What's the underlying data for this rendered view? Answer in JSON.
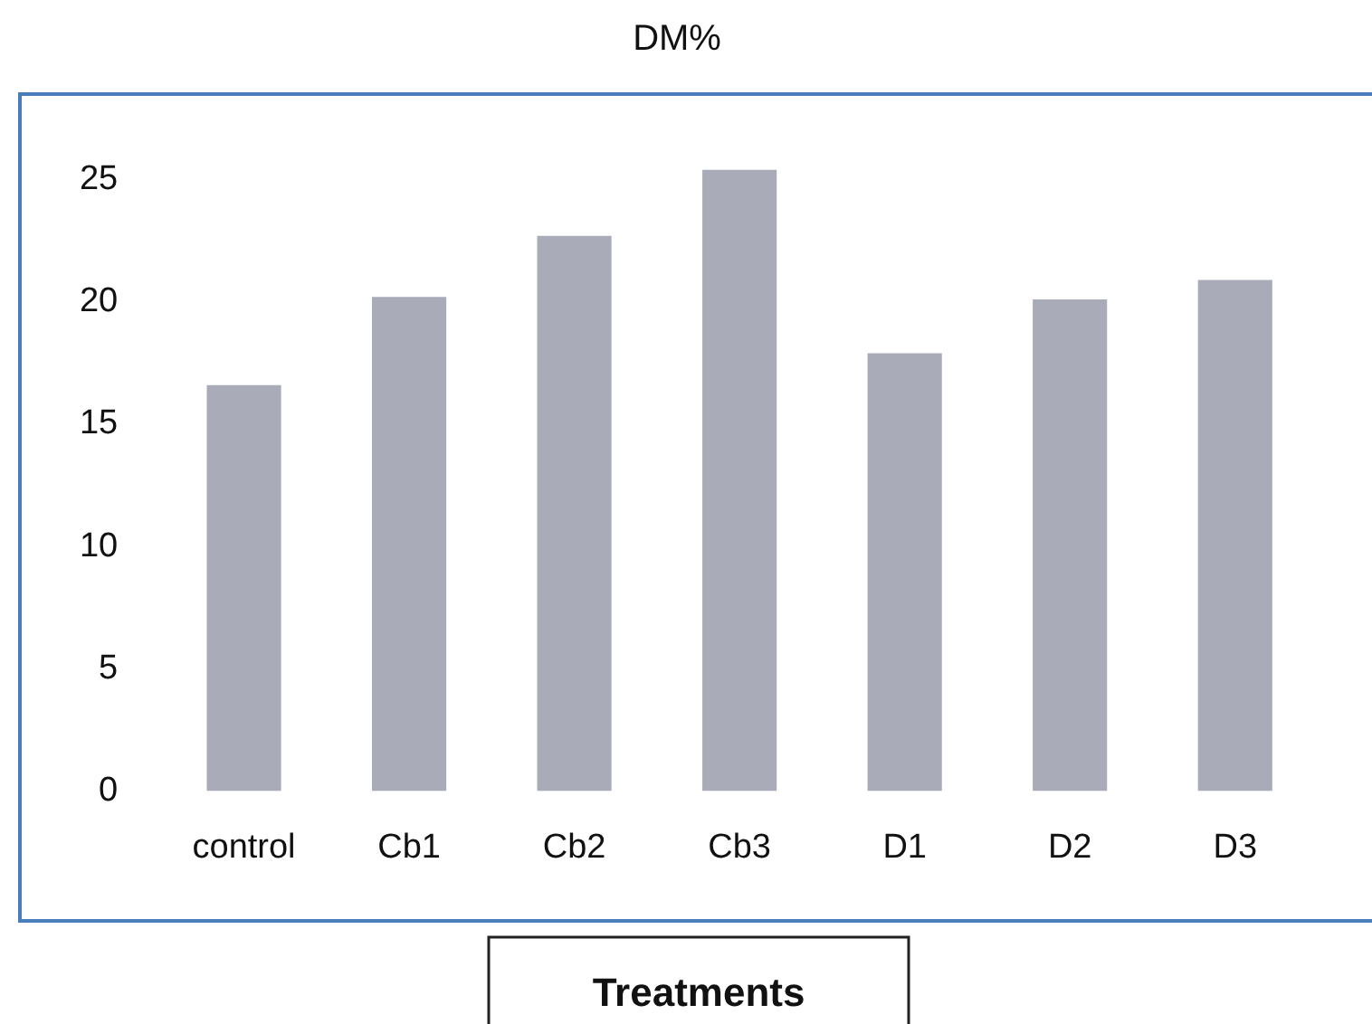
{
  "chart_data": {
    "type": "bar",
    "title": "DM%",
    "xlabel": "Treatments",
    "categories": [
      "control",
      "Cb1",
      "Cb2",
      "Cb3",
      "D1",
      "D2",
      "D3"
    ],
    "values": [
      16.6,
      20.2,
      22.7,
      25.4,
      17.9,
      20.1,
      20.9
    ],
    "color": "#a9acb8",
    "ylim": [
      0,
      28.5
    ],
    "yticks": [
      0,
      5,
      10,
      15,
      20,
      25
    ],
    "grid": false,
    "legend": false
  }
}
